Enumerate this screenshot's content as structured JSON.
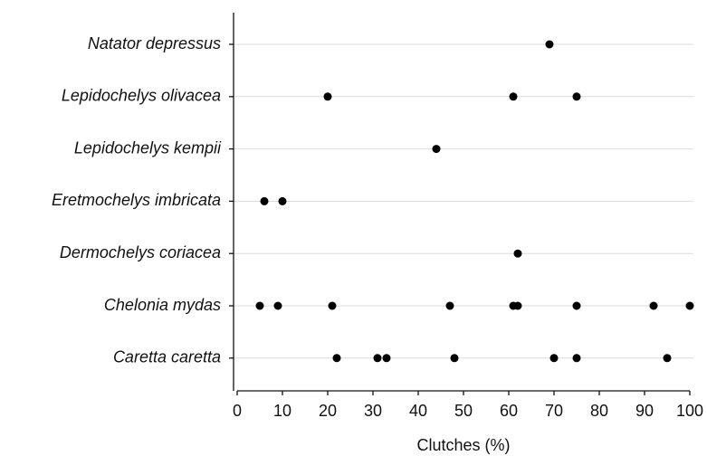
{
  "chart_data": {
    "type": "strip",
    "x_label": "Clutches (%)",
    "categories": [
      "Natator depressus",
      "Lepidochelys olivacea",
      "Lepidochelys kempii",
      "Eretmochelys imbricata",
      "Dermochelys coriacea",
      "Chelonia mydas",
      "Caretta caretta"
    ],
    "values": [
      [
        69
      ],
      [
        20,
        61,
        75
      ],
      [
        44
      ],
      [
        6,
        10
      ],
      [
        62
      ],
      [
        5,
        9,
        21,
        47,
        61,
        62,
        75,
        92,
        100
      ],
      [
        22,
        31,
        33,
        48,
        70,
        75,
        95
      ]
    ],
    "color": "#000000",
    "xlim": [
      0,
      100
    ],
    "xticks": [
      0,
      10,
      20,
      30,
      40,
      50,
      60,
      70,
      80,
      90,
      100
    ],
    "grid": true
  }
}
